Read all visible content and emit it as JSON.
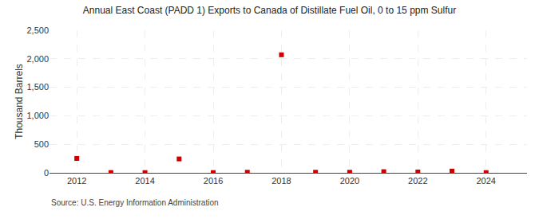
{
  "chart_data": {
    "type": "scatter",
    "title": "Annual East Coast (PADD 1) Exports to Canada of Distillate Fuel Oil, 0 to 15 ppm Sulfur",
    "y_label": "Thousand Barrels",
    "annotations": [
      "Source: U.S. Energy Information Administration"
    ],
    "x": [
      2012,
      2013,
      2014,
      2015,
      2016,
      2017,
      2018,
      2019,
      2020,
      2021,
      2022,
      2023,
      2024
    ],
    "values": [
      252,
      5,
      4,
      243,
      4,
      10,
      2070,
      10,
      10,
      20,
      15,
      30,
      4
    ],
    "color": "#cc0000",
    "marker": "square",
    "xlim": [
      2011.2,
      2025.2
    ],
    "xticks": [
      2012,
      2014,
      2016,
      2018,
      2020,
      2022,
      2024
    ],
    "ylim": [
      0,
      2500
    ],
    "yticks": [
      0,
      500,
      {
        "value": 1000,
        "label": "1,000"
      },
      {
        "value": 1500,
        "label": "1,500"
      },
      {
        "value": 2000,
        "label": "2,000"
      },
      {
        "value": 2500,
        "label": "2,500"
      }
    ],
    "grid": true
  }
}
